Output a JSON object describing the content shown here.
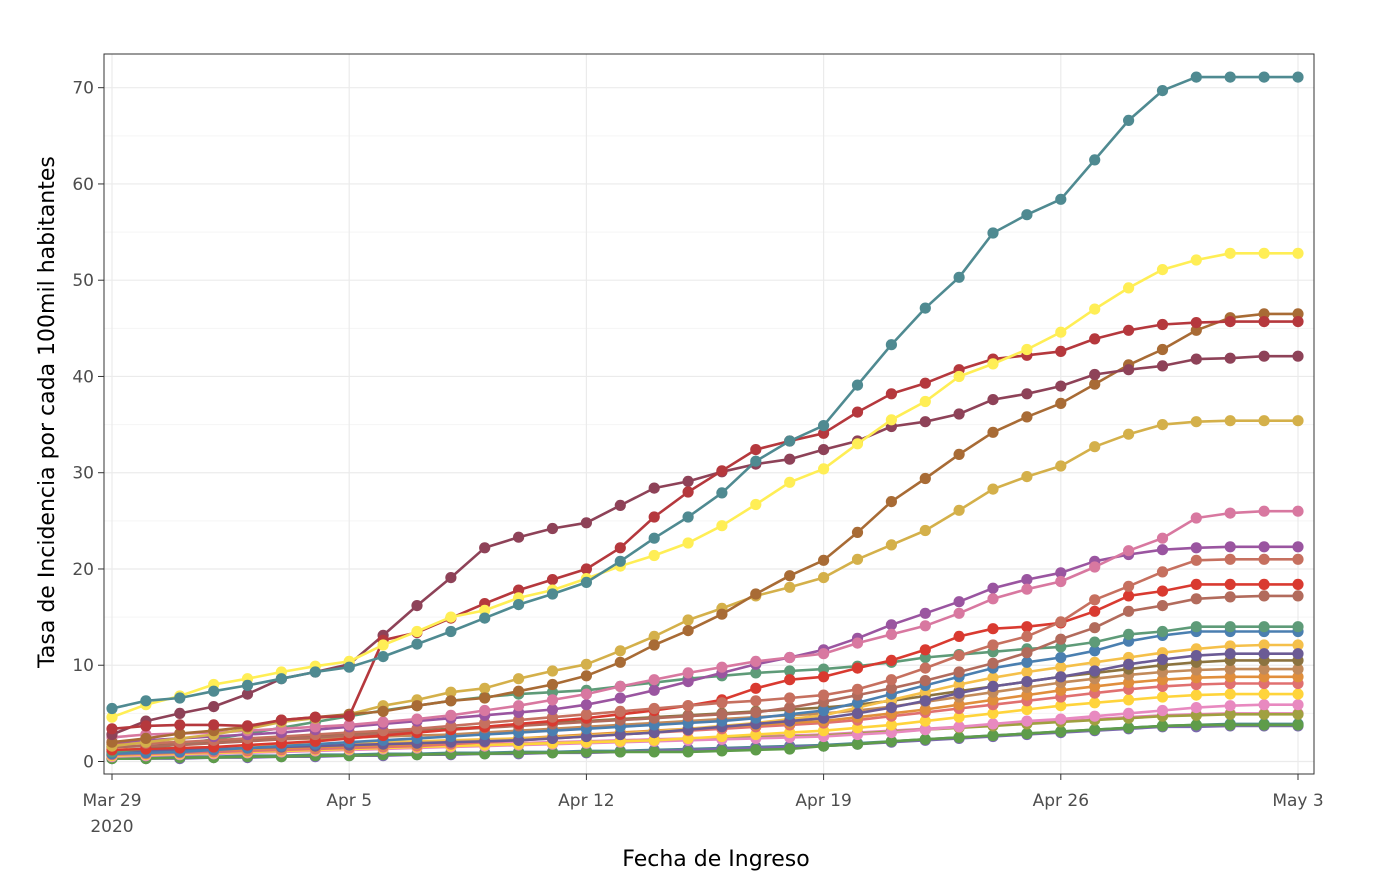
{
  "chart_data": {
    "type": "line",
    "title": "",
    "xlabel": "Fecha de Ingreso",
    "ylabel": "Tasa de Incidencia por cada 100mil habitantes",
    "x_ticks": [
      {
        "date": "2020-03-29",
        "label": "Mar 29",
        "sublabel": "2020"
      },
      {
        "date": "2020-04-05",
        "label": "Apr 5",
        "sublabel": ""
      },
      {
        "date": "2020-04-12",
        "label": "Apr 12",
        "sublabel": ""
      },
      {
        "date": "2020-04-19",
        "label": "Apr 19",
        "sublabel": ""
      },
      {
        "date": "2020-04-26",
        "label": "Apr 26",
        "sublabel": ""
      },
      {
        "date": "2020-05-03",
        "label": "May 3",
        "sublabel": ""
      }
    ],
    "y_ticks": [
      0,
      10,
      20,
      30,
      40,
      50,
      60,
      70
    ],
    "xlim": [
      "2020-03-29",
      "2020-05-03"
    ],
    "ylim": [
      -1.3,
      73.5
    ],
    "grid": true,
    "legend": "none",
    "x": [
      "2020-03-29",
      "2020-03-30",
      "2020-03-31",
      "2020-04-01",
      "2020-04-02",
      "2020-04-03",
      "2020-04-04",
      "2020-04-05",
      "2020-04-06",
      "2020-04-07",
      "2020-04-08",
      "2020-04-09",
      "2020-04-10",
      "2020-04-11",
      "2020-04-12",
      "2020-04-13",
      "2020-04-14",
      "2020-04-15",
      "2020-04-16",
      "2020-04-17",
      "2020-04-18",
      "2020-04-19",
      "2020-04-20",
      "2020-04-21",
      "2020-04-22",
      "2020-04-23",
      "2020-04-24",
      "2020-04-25",
      "2020-04-26",
      "2020-04-27",
      "2020-04-28",
      "2020-04-29",
      "2020-04-30",
      "2020-05-01",
      "2020-05-02",
      "2020-05-03"
    ],
    "series": [
      {
        "color": "#4f8a91",
        "values": [
          5.5,
          6.3,
          6.6,
          7.3,
          7.9,
          8.6,
          9.3,
          9.8,
          10.9,
          12.2,
          13.5,
          14.9,
          16.3,
          17.4,
          18.6,
          20.8,
          23.2,
          25.4,
          27.9,
          31.2,
          33.3,
          34.9,
          39.1,
          43.3,
          47.1,
          50.3,
          54.9,
          56.8,
          58.4,
          62.5,
          66.6,
          69.7,
          71.1,
          71.1,
          71.1,
          71.1
        ]
      },
      {
        "color": "#ffee55",
        "values": [
          4.6,
          5.9,
          6.8,
          8.0,
          8.6,
          9.3,
          9.9,
          10.4,
          12.1,
          13.5,
          15.0,
          15.7,
          17.0,
          17.8,
          19.0,
          20.3,
          21.4,
          22.7,
          24.5,
          26.7,
          29.0,
          30.4,
          33.0,
          35.5,
          37.4,
          40.0,
          41.3,
          42.8,
          44.6,
          47.0,
          49.2,
          51.1,
          52.1,
          52.8,
          52.8,
          52.8
        ]
      },
      {
        "color": "#b5383d",
        "values": [
          3.4,
          3.7,
          3.8,
          3.8,
          3.7,
          4.3,
          4.6,
          4.7,
          12.6,
          13.4,
          14.9,
          16.4,
          17.8,
          18.9,
          20.0,
          22.2,
          25.4,
          28.0,
          30.2,
          32.4,
          33.3,
          34.1,
          36.3,
          38.2,
          39.3,
          40.7,
          41.8,
          42.2,
          42.6,
          43.9,
          44.8,
          45.4,
          45.6,
          45.7,
          45.7,
          45.7
        ]
      },
      {
        "color": "#8e4258",
        "values": [
          2.8,
          4.2,
          5.0,
          5.7,
          7.0,
          8.6,
          9.3,
          10.1,
          13.1,
          16.2,
          19.1,
          22.2,
          23.3,
          24.2,
          24.8,
          26.6,
          28.4,
          29.1,
          30.1,
          30.9,
          31.4,
          32.4,
          33.3,
          34.8,
          35.3,
          36.1,
          37.6,
          38.2,
          39.0,
          40.2,
          40.7,
          41.1,
          41.8,
          41.9,
          42.1,
          42.1
        ]
      },
      {
        "color": "#a86b35",
        "values": [
          2.0,
          2.4,
          2.9,
          3.2,
          3.6,
          4.3,
          4.6,
          4.9,
          5.2,
          5.8,
          6.3,
          6.6,
          7.3,
          8.0,
          8.9,
          10.3,
          12.1,
          13.6,
          15.3,
          17.4,
          19.3,
          20.9,
          23.8,
          27.0,
          29.4,
          31.9,
          34.2,
          35.8,
          37.2,
          39.2,
          41.2,
          42.8,
          44.8,
          46.1,
          46.5,
          46.5
        ]
      },
      {
        "color": "#d4b04a",
        "values": [
          1.6,
          2.0,
          2.4,
          2.8,
          3.4,
          4.1,
          4.5,
          4.9,
          5.8,
          6.4,
          7.2,
          7.6,
          8.6,
          9.4,
          10.1,
          11.5,
          13.0,
          14.7,
          15.9,
          17.2,
          18.1,
          19.1,
          21.0,
          22.5,
          24.0,
          26.1,
          28.3,
          29.6,
          30.7,
          32.7,
          34.0,
          35.0,
          35.3,
          35.4,
          35.4,
          35.4
        ]
      },
      {
        "color": "#d878a0",
        "values": [
          2.5,
          2.8,
          2.9,
          3.0,
          3.2,
          3.4,
          3.6,
          3.8,
          4.1,
          4.4,
          4.8,
          5.3,
          5.8,
          6.4,
          7.0,
          7.8,
          8.5,
          9.2,
          9.8,
          10.4,
          10.8,
          11.2,
          12.3,
          13.2,
          14.1,
          15.4,
          16.9,
          17.9,
          18.7,
          20.2,
          21.9,
          23.2,
          25.3,
          25.8,
          26.0,
          26.0
        ]
      },
      {
        "color": "#9a55a0",
        "values": [
          2.0,
          2.2,
          2.4,
          2.6,
          2.8,
          3.0,
          3.3,
          3.6,
          3.9,
          4.2,
          4.5,
          4.8,
          5.1,
          5.4,
          5.9,
          6.6,
          7.4,
          8.3,
          9.2,
          10.1,
          10.8,
          11.6,
          12.8,
          14.2,
          15.4,
          16.6,
          18.0,
          18.9,
          19.6,
          20.8,
          21.5,
          22.0,
          22.2,
          22.3,
          22.3,
          22.3
        ]
      },
      {
        "color": "#c6705f",
        "values": [
          1.8,
          1.9,
          2.0,
          2.2,
          2.4,
          2.6,
          2.8,
          3.0,
          3.2,
          3.4,
          3.7,
          4.0,
          4.3,
          4.6,
          4.9,
          5.2,
          5.5,
          5.8,
          6.1,
          6.3,
          6.6,
          6.9,
          7.5,
          8.5,
          9.7,
          11.0,
          12.1,
          13.0,
          14.5,
          16.8,
          18.2,
          19.7,
          20.9,
          21.0,
          21.0,
          21.0
        ]
      },
      {
        "color": "#d93a30",
        "values": [
          1.2,
          1.3,
          1.4,
          1.5,
          1.7,
          1.9,
          2.1,
          2.4,
          2.7,
          3.0,
          3.3,
          3.6,
          3.9,
          4.2,
          4.5,
          4.9,
          5.3,
          5.8,
          6.4,
          7.6,
          8.5,
          8.8,
          9.7,
          10.5,
          11.6,
          13.0,
          13.8,
          14.0,
          14.4,
          15.6,
          17.2,
          17.7,
          18.4,
          18.4,
          18.4,
          18.4
        ]
      },
      {
        "color": "#b26b5c",
        "values": [
          1.5,
          1.6,
          1.7,
          1.9,
          2.1,
          2.3,
          2.5,
          2.7,
          2.9,
          3.1,
          3.3,
          3.5,
          3.7,
          3.9,
          4.1,
          4.3,
          4.5,
          4.7,
          4.9,
          5.1,
          5.6,
          6.2,
          6.9,
          7.6,
          8.4,
          9.3,
          10.2,
          11.3,
          12.7,
          13.9,
          15.6,
          16.2,
          16.9,
          17.1,
          17.2,
          17.2
        ]
      },
      {
        "color": "#5e9b78",
        "values": [
          1.0,
          1.3,
          1.8,
          2.3,
          2.9,
          3.5,
          4.1,
          4.7,
          5.3,
          5.8,
          6.3,
          6.7,
          7.0,
          7.2,
          7.4,
          7.8,
          8.2,
          8.6,
          8.9,
          9.2,
          9.4,
          9.6,
          9.9,
          10.3,
          10.8,
          11.1,
          11.4,
          11.7,
          11.9,
          12.4,
          13.2,
          13.5,
          14.0,
          14.0,
          14.0,
          14.0
        ]
      },
      {
        "color": "#4a7fb0",
        "values": [
          0.8,
          0.9,
          1.0,
          1.2,
          1.4,
          1.6,
          1.8,
          2.0,
          2.2,
          2.4,
          2.6,
          2.8,
          3.0,
          3.2,
          3.4,
          3.6,
          3.8,
          4.0,
          4.2,
          4.5,
          4.9,
          5.3,
          6.1,
          7.0,
          7.9,
          8.8,
          9.7,
          10.3,
          10.8,
          11.5,
          12.5,
          13.1,
          13.5,
          13.5,
          13.5,
          13.5
        ]
      },
      {
        "color": "#6b5b95",
        "values": [
          1.0,
          1.1,
          1.2,
          1.3,
          1.4,
          1.5,
          1.6,
          1.7,
          1.8,
          1.9,
          2.0,
          2.1,
          2.2,
          2.4,
          2.6,
          2.8,
          3.0,
          3.3,
          3.6,
          3.9,
          4.2,
          4.5,
          5.0,
          5.6,
          6.3,
          7.1,
          7.8,
          8.3,
          8.8,
          9.4,
          10.1,
          10.6,
          11.0,
          11.2,
          11.2,
          11.2
        ]
      },
      {
        "color": "#f5c04a",
        "values": [
          1.2,
          1.3,
          1.4,
          1.5,
          1.6,
          1.7,
          1.8,
          1.9,
          2.0,
          2.1,
          2.2,
          2.3,
          2.4,
          2.5,
          2.7,
          2.9,
          3.1,
          3.4,
          3.7,
          4.0,
          4.4,
          4.8,
          5.6,
          6.4,
          7.2,
          8.0,
          8.7,
          9.3,
          9.8,
          10.3,
          10.8,
          11.3,
          11.7,
          12.0,
          12.1,
          12.1
        ]
      },
      {
        "color": "#8b7340",
        "values": [
          1.5,
          1.6,
          1.8,
          2.0,
          2.2,
          2.4,
          2.6,
          2.8,
          3.0,
          3.2,
          3.4,
          3.6,
          3.8,
          4.0,
          4.2,
          4.4,
          4.6,
          4.8,
          5.0,
          5.2,
          5.4,
          5.6,
          5.9,
          6.3,
          6.8,
          7.3,
          7.8,
          8.3,
          8.8,
          9.2,
          9.6,
          10.0,
          10.3,
          10.5,
          10.5,
          10.5
        ]
      },
      {
        "color": "#c28a5a",
        "values": [
          1.8,
          1.9,
          2.0,
          2.1,
          2.2,
          2.3,
          2.4,
          2.5,
          2.6,
          2.7,
          2.8,
          3.0,
          3.2,
          3.4,
          3.6,
          3.8,
          4.0,
          4.2,
          4.4,
          4.6,
          4.8,
          5.0,
          5.3,
          5.7,
          6.2,
          6.7,
          7.2,
          7.7,
          8.2,
          8.6,
          9.0,
          9.3,
          9.5,
          9.6,
          9.6,
          9.6
        ]
      },
      {
        "color": "#e08e3c",
        "values": [
          0.9,
          1.0,
          1.1,
          1.2,
          1.3,
          1.4,
          1.5,
          1.6,
          1.7,
          1.8,
          2.0,
          2.2,
          2.4,
          2.6,
          2.8,
          3.0,
          3.2,
          3.4,
          3.6,
          3.8,
          4.0,
          4.2,
          4.6,
          5.0,
          5.4,
          5.9,
          6.4,
          6.9,
          7.4,
          7.8,
          8.2,
          8.5,
          8.7,
          8.8,
          8.8,
          8.8
        ]
      },
      {
        "color": "#e07070",
        "values": [
          0.7,
          0.8,
          0.9,
          1.0,
          1.1,
          1.2,
          1.3,
          1.4,
          1.5,
          1.6,
          1.8,
          2.0,
          2.2,
          2.4,
          2.6,
          2.8,
          3.0,
          3.2,
          3.4,
          3.6,
          3.8,
          4.0,
          4.3,
          4.7,
          5.1,
          5.5,
          5.9,
          6.3,
          6.7,
          7.1,
          7.5,
          7.8,
          8.0,
          8.1,
          8.1,
          8.1
        ]
      },
      {
        "color": "#ffd43b",
        "values": [
          0.6,
          0.7,
          0.8,
          0.9,
          1.0,
          1.1,
          1.2,
          1.3,
          1.4,
          1.5,
          1.6,
          1.7,
          1.8,
          1.9,
          2.0,
          2.1,
          2.2,
          2.4,
          2.6,
          2.8,
          3.0,
          3.2,
          3.5,
          3.8,
          4.2,
          4.6,
          5.0,
          5.4,
          5.8,
          6.1,
          6.4,
          6.7,
          6.9,
          7.0,
          7.0,
          7.0
        ]
      },
      {
        "color": "#e889c0",
        "values": [
          0.5,
          0.6,
          0.7,
          0.8,
          0.9,
          1.0,
          1.1,
          1.2,
          1.3,
          1.4,
          1.5,
          1.6,
          1.7,
          1.8,
          1.9,
          2.0,
          2.1,
          2.2,
          2.3,
          2.4,
          2.5,
          2.6,
          2.8,
          3.0,
          3.3,
          3.6,
          3.9,
          4.2,
          4.4,
          4.7,
          5.0,
          5.3,
          5.6,
          5.8,
          5.9,
          5.9
        ]
      },
      {
        "color": "#a0a040",
        "values": [
          0.6,
          0.7,
          0.8,
          0.9,
          1.0,
          1.1,
          1.2,
          1.3,
          1.4,
          1.5,
          1.6,
          1.7,
          1.8,
          1.9,
          2.0,
          2.1,
          2.2,
          2.3,
          2.4,
          2.5,
          2.6,
          2.7,
          2.9,
          3.1,
          3.3,
          3.5,
          3.7,
          3.9,
          4.1,
          4.3,
          4.5,
          4.7,
          4.8,
          4.9,
          4.9,
          4.9
        ]
      },
      {
        "color": "#5e9c4a",
        "values": [
          0.3,
          0.3,
          0.4,
          0.4,
          0.5,
          0.5,
          0.6,
          0.6,
          0.7,
          0.7,
          0.8,
          0.8,
          0.9,
          0.9,
          1.0,
          1.0,
          1.0,
          1.0,
          1.1,
          1.2,
          1.3,
          1.6,
          1.8,
          2.1,
          2.3,
          2.5,
          2.7,
          2.9,
          3.1,
          3.3,
          3.5,
          3.7,
          3.8,
          3.8,
          3.8,
          3.8
        ]
      },
      {
        "color": "#7b68b0",
        "values": [
          0.3,
          0.3,
          0.3,
          0.4,
          0.4,
          0.5,
          0.5,
          0.6,
          0.6,
          0.7,
          0.7,
          0.8,
          0.8,
          0.9,
          0.9,
          1.0,
          1.1,
          1.2,
          1.3,
          1.4,
          1.5,
          1.6,
          1.8,
          2.0,
          2.2,
          2.4,
          2.6,
          2.8,
          3.0,
          3.2,
          3.4,
          3.6,
          3.6,
          3.7,
          3.7,
          3.7
        ]
      },
      {
        "color": "#4f8a91",
        "values": [
          0.4,
          0.4,
          0.5,
          0.5,
          0.6,
          0.6,
          0.7,
          0.7,
          0.8,
          0.8,
          0.9,
          0.9,
          1.0,
          1.0,
          1.1,
          1.1,
          1.2,
          1.3,
          1.4,
          1.5,
          1.6,
          1.7,
          1.9,
          2.1,
          2.3,
          2.5,
          2.7,
          2.9,
          3.1,
          3.3,
          3.5,
          3.7,
          3.8,
          3.9,
          3.9,
          3.9
        ]
      },
      {
        "color": "#e580b8",
        "values": [
          0.7,
          0.8,
          0.9,
          1.0,
          1.1,
          1.2,
          1.3,
          1.4,
          1.5,
          1.6,
          1.7,
          1.8,
          1.9,
          2.0,
          2.1,
          2.2,
          2.3,
          2.4,
          2.5,
          2.6,
          2.7,
          2.8,
          3.0,
          3.2,
          3.4,
          3.6,
          3.8,
          4.0,
          4.2,
          4.4,
          4.6,
          4.8,
          4.9,
          5.0,
          5.0,
          5.0
        ]
      }
    ]
  }
}
